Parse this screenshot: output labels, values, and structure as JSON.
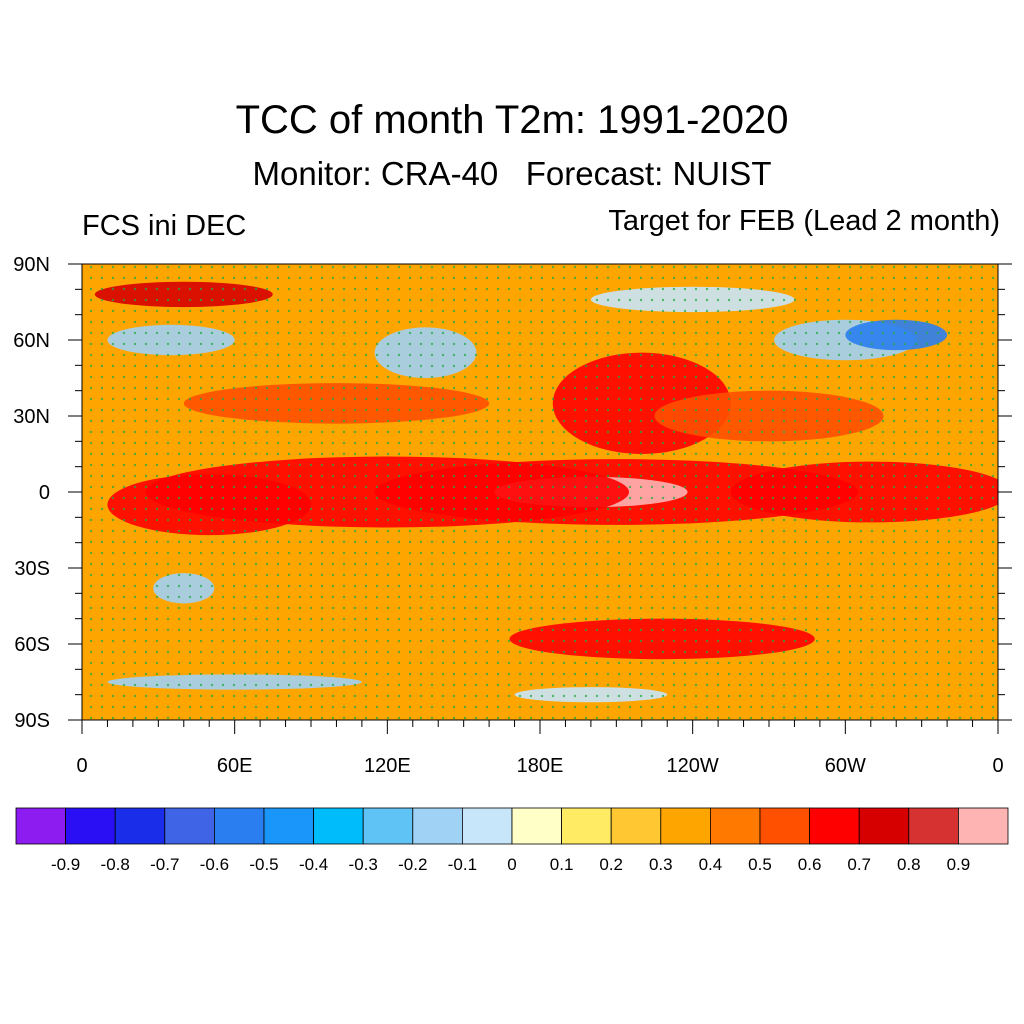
{
  "title": "TCC of month T2m: 1991-2020",
  "subtitle": "Monitor: CRA-40   Forecast: NUIST",
  "left_label": "FCS ini DEC",
  "right_label": "Target for FEB (Lead 2 month)",
  "map": {
    "lat_ticks": [
      "90N",
      "60N",
      "30N",
      "0",
      "30S",
      "60S",
      "90S"
    ],
    "lon_ticks": [
      "0",
      "60E",
      "120E",
      "180E",
      "120W",
      "60W",
      "0"
    ],
    "blobs": [
      {
        "lon": 210,
        "lat": 0,
        "rx": 95,
        "ry": 13,
        "color": "#ff0000"
      },
      {
        "lon": 200,
        "lat": 0,
        "rx": 38,
        "ry": 6,
        "color": "#ffb4b4"
      },
      {
        "lon": 120,
        "lat": 0,
        "rx": 95,
        "ry": 14,
        "color": "#ff0000"
      },
      {
        "lon": 50,
        "lat": -5,
        "rx": 40,
        "ry": 12,
        "color": "#ff0000"
      },
      {
        "lon": 310,
        "lat": 0,
        "rx": 55,
        "ry": 12,
        "color": "#ff0000"
      },
      {
        "lon": 220,
        "lat": 35,
        "rx": 35,
        "ry": 20,
        "color": "#ff0000"
      },
      {
        "lon": 228,
        "lat": -58,
        "rx": 60,
        "ry": 8,
        "color": "#ff0000"
      },
      {
        "lon": 40,
        "lat": 78,
        "rx": 35,
        "ry": 5,
        "color": "#d60000"
      },
      {
        "lon": 100,
        "lat": 35,
        "rx": 60,
        "ry": 8,
        "color": "#ff5000"
      },
      {
        "lon": 270,
        "lat": 30,
        "rx": 45,
        "ry": 10,
        "color": "#ff5000"
      },
      {
        "lon": 300,
        "lat": 60,
        "rx": 28,
        "ry": 8,
        "color": "#a0d2f5"
      },
      {
        "lon": 320,
        "lat": 62,
        "rx": 20,
        "ry": 6,
        "color": "#2a7ef0"
      },
      {
        "lon": 135,
        "lat": 55,
        "rx": 20,
        "ry": 10,
        "color": "#a0d2f5"
      },
      {
        "lon": 35,
        "lat": 60,
        "rx": 25,
        "ry": 6,
        "color": "#a0d2f5"
      },
      {
        "lon": 240,
        "lat": 76,
        "rx": 40,
        "ry": 5,
        "color": "#c8e6fa"
      },
      {
        "lon": 40,
        "lat": -38,
        "rx": 12,
        "ry": 6,
        "color": "#a0d2f5"
      },
      {
        "lon": 60,
        "lat": -75,
        "rx": 50,
        "ry": 3,
        "color": "#a0d2f5"
      },
      {
        "lon": 200,
        "lat": -80,
        "rx": 30,
        "ry": 3,
        "color": "#c8e6fa"
      }
    ]
  },
  "colorbar": {
    "colors": [
      "#8c1cf0",
      "#2a0ff5",
      "#1a2de8",
      "#4064e6",
      "#2a7ef0",
      "#1a96fa",
      "#00bcfa",
      "#5fc3f5",
      "#a0d2f5",
      "#c8e6fa",
      "#ffffc8",
      "#ffeb64",
      "#ffc832",
      "#ffa500",
      "#ff7800",
      "#ff5000",
      "#ff0000",
      "#d60000",
      "#d63232",
      "#ffb4b4"
    ],
    "labels": [
      "-0.9",
      "-0.8",
      "-0.7",
      "-0.6",
      "-0.5",
      "-0.4",
      "-0.3",
      "-0.2",
      "-0.1",
      "0",
      "0.1",
      "0.2",
      "0.3",
      "0.4",
      "0.5",
      "0.6",
      "0.7",
      "0.8",
      "0.9"
    ]
  },
  "colors": {
    "base_field": "#ffa500",
    "stipple": "#22aa44"
  }
}
